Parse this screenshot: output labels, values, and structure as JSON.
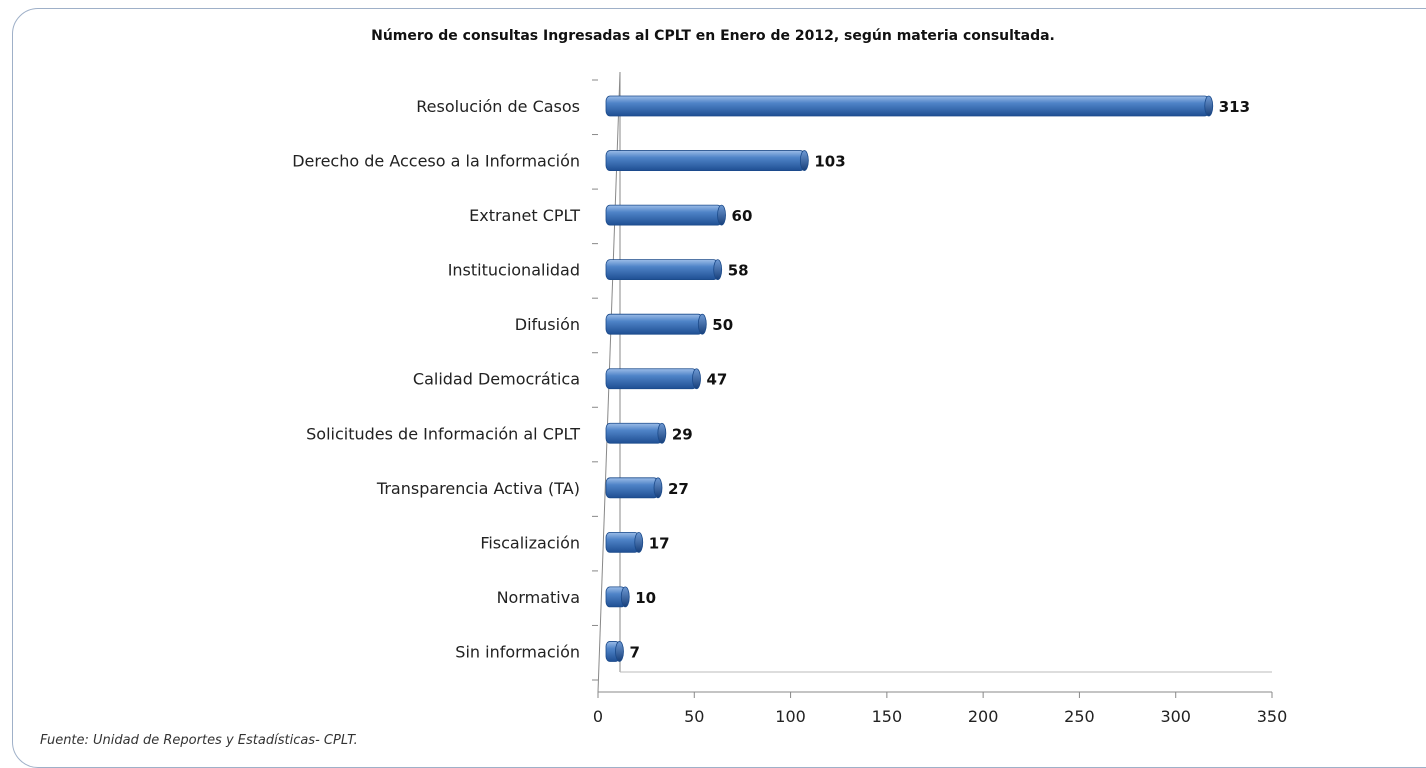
{
  "chart_data": {
    "type": "bar",
    "orientation": "horizontal",
    "title": "Número de consultas Ingresadas al CPLT en Enero de 2012,  según materia consultada.",
    "categories": [
      "Resolución de Casos",
      "Derecho de Acceso a la Información",
      "Extranet CPLT",
      "Institucionalidad",
      "Difusión",
      "Calidad Democrática",
      "Solicitudes de Información al CPLT",
      "Transparencia Activa (TA)",
      "Fiscalización",
      "Normativa",
      "Sin información"
    ],
    "values": [
      313,
      103,
      60,
      58,
      50,
      47,
      29,
      27,
      17,
      10,
      7
    ],
    "xlim": [
      0,
      350
    ],
    "xticks": [
      0,
      50,
      100,
      150,
      200,
      250,
      300,
      350
    ],
    "xlabel": "",
    "ylabel": "",
    "bar_color": "#3b6fb6",
    "legend": "none",
    "grid": false
  },
  "source": "Fuente: Unidad de Reportes y Estadísticas- CPLT."
}
